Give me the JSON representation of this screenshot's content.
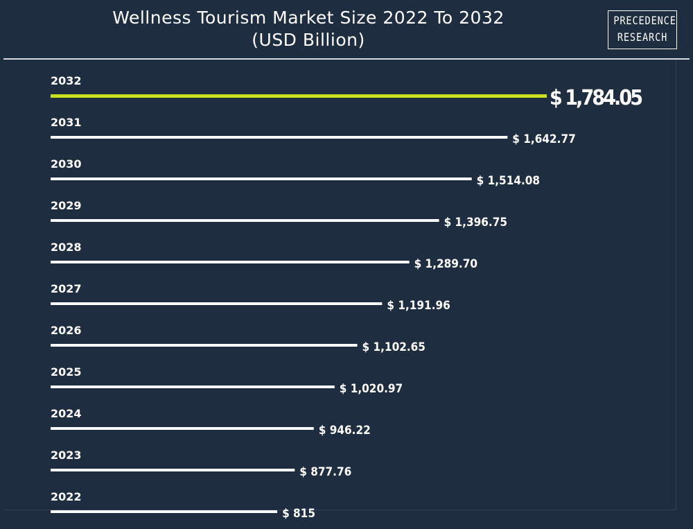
{
  "header": {
    "title_line1": "Wellness Tourism Market Size 2022 To 2032",
    "title_line2": "(USD Billion)"
  },
  "logo": {
    "line1": "PRECEDENCE",
    "line2": "RESEARCH"
  },
  "colors": {
    "background": "#1e2d3f",
    "bar": "#ffffff",
    "highlight_bar": "#c8e01e",
    "text": "#ffffff"
  },
  "chart_data": {
    "type": "bar",
    "orientation": "horizontal",
    "title": "Wellness Tourism Market Size 2022 To 2032",
    "subtitle": "(USD Billion)",
    "categories": [
      "2032",
      "2031",
      "2030",
      "2029",
      "2028",
      "2027",
      "2026",
      "2025",
      "2024",
      "2023",
      "2022"
    ],
    "values": [
      1784.05,
      1642.77,
      1514.08,
      1396.75,
      1289.7,
      1191.96,
      1102.65,
      1020.97,
      946.22,
      877.76,
      815
    ],
    "value_labels": [
      "$ 1,784.05",
      "$ 1,642.77",
      "$ 1,514.08",
      "$ 1,396.75",
      "$ 1,289.70",
      "$ 1,191.96",
      "$ 1,102.65",
      "$ 1,020.97",
      "$ 946.22",
      "$ 877.76",
      "$ 815"
    ],
    "highlight_category": "2032",
    "grid": false,
    "legend": "none"
  }
}
